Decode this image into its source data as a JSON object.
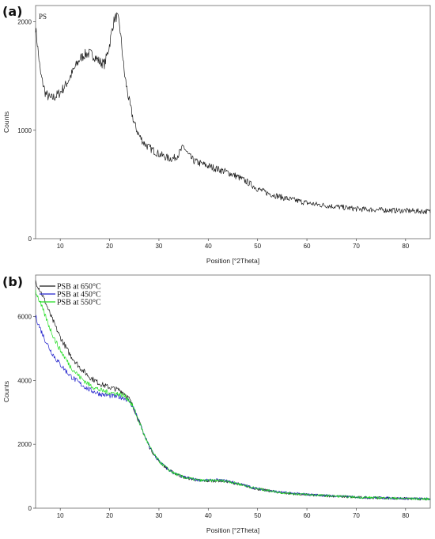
{
  "chart_data": [
    {
      "panel_label": "(a)",
      "type": "line",
      "xlabel": "Position [°2Theta]",
      "ylabel": "Counts",
      "xlim": [
        5,
        85
      ],
      "ylim": [
        0,
        2150
      ],
      "xticks": [
        10,
        20,
        30,
        40,
        50,
        60,
        70,
        80
      ],
      "yticks": [
        0,
        1000,
        2000
      ],
      "series": [
        {
          "name": "PS",
          "color": "#1a1a1a",
          "x": [
            5,
            6,
            7,
            8,
            9,
            10,
            11,
            12,
            13,
            14,
            15,
            16,
            17,
            18,
            19,
            20,
            20.5,
            21,
            21.5,
            22,
            22.5,
            23,
            24,
            25,
            26,
            27,
            28,
            29,
            30,
            31,
            32,
            33,
            34,
            35,
            36,
            37,
            38,
            40,
            42,
            44,
            46,
            48,
            50,
            52,
            55,
            58,
            60,
            62,
            65,
            68,
            70,
            72,
            75,
            78,
            80,
            82,
            85
          ],
          "values": [
            1950,
            1520,
            1340,
            1290,
            1310,
            1350,
            1410,
            1490,
            1580,
            1660,
            1700,
            1710,
            1680,
            1630,
            1610,
            1790,
            1930,
            2030,
            2050,
            1980,
            1760,
            1520,
            1260,
            1060,
            950,
            880,
            840,
            810,
            780,
            760,
            740,
            740,
            780,
            850,
            770,
            720,
            700,
            670,
            640,
            610,
            570,
            520,
            460,
            420,
            380,
            350,
            330,
            315,
            300,
            285,
            275,
            270,
            265,
            260,
            258,
            255,
            250
          ]
        }
      ]
    },
    {
      "panel_label": "(b)",
      "type": "line",
      "xlabel": "Position [°2Theta]",
      "ylabel": "Counts",
      "xlim": [
        5,
        85
      ],
      "ylim": [
        0,
        7300
      ],
      "xticks": [
        10,
        20,
        30,
        40,
        50,
        60,
        70,
        80
      ],
      "yticks": [
        0,
        2000,
        4000,
        6000
      ],
      "legend_position": "top-left",
      "series": [
        {
          "name": "PSB at 650°C",
          "color": "#1a1a1a",
          "x": [
            5,
            6,
            7,
            8,
            9,
            10,
            12,
            14,
            16,
            18,
            20,
            22,
            23,
            24,
            25,
            26,
            27,
            28,
            29,
            30,
            31,
            32,
            33,
            35,
            38,
            40,
            42,
            44,
            46,
            48,
            50,
            55,
            60,
            65,
            70,
            75,
            80,
            85
          ],
          "values": [
            7100,
            6800,
            6450,
            6050,
            5700,
            5350,
            4800,
            4400,
            4100,
            3900,
            3780,
            3700,
            3600,
            3420,
            3100,
            2700,
            2300,
            1950,
            1680,
            1480,
            1330,
            1200,
            1100,
            970,
            870,
            850,
            860,
            830,
            760,
            680,
            600,
            480,
            420,
            380,
            340,
            320,
            300,
            280
          ]
        },
        {
          "name": "PSB at 450°C",
          "color": "#2222cc",
          "x": [
            5,
            6,
            7,
            8,
            9,
            10,
            12,
            14,
            16,
            18,
            20,
            22,
            23,
            24,
            25,
            26,
            27,
            28,
            29,
            30,
            31,
            32,
            33,
            35,
            38,
            40,
            42,
            44,
            46,
            48,
            50,
            55,
            60,
            65,
            70,
            75,
            80,
            85
          ],
          "values": [
            6000,
            5600,
            5250,
            4950,
            4700,
            4500,
            4150,
            3900,
            3700,
            3580,
            3520,
            3480,
            3450,
            3350,
            3100,
            2700,
            2300,
            1950,
            1680,
            1480,
            1330,
            1200,
            1100,
            970,
            880,
            870,
            880,
            850,
            770,
            690,
            610,
            490,
            430,
            385,
            345,
            325,
            305,
            285
          ]
        },
        {
          "name": "PSB at 550°C",
          "color": "#22dd22",
          "x": [
            5,
            6,
            7,
            8,
            9,
            10,
            12,
            14,
            16,
            18,
            20,
            22,
            23,
            24,
            25,
            26,
            27,
            28,
            29,
            30,
            31,
            32,
            33,
            35,
            38,
            40,
            42,
            44,
            46,
            48,
            50,
            55,
            60,
            65,
            70,
            75,
            80,
            85
          ],
          "values": [
            6800,
            6400,
            6000,
            5600,
            5250,
            4950,
            4450,
            4100,
            3850,
            3700,
            3620,
            3570,
            3520,
            3380,
            3100,
            2700,
            2300,
            1950,
            1680,
            1480,
            1330,
            1200,
            1100,
            970,
            875,
            860,
            870,
            840,
            765,
            685,
            605,
            485,
            425,
            383,
            343,
            323,
            303,
            283
          ]
        }
      ]
    }
  ]
}
